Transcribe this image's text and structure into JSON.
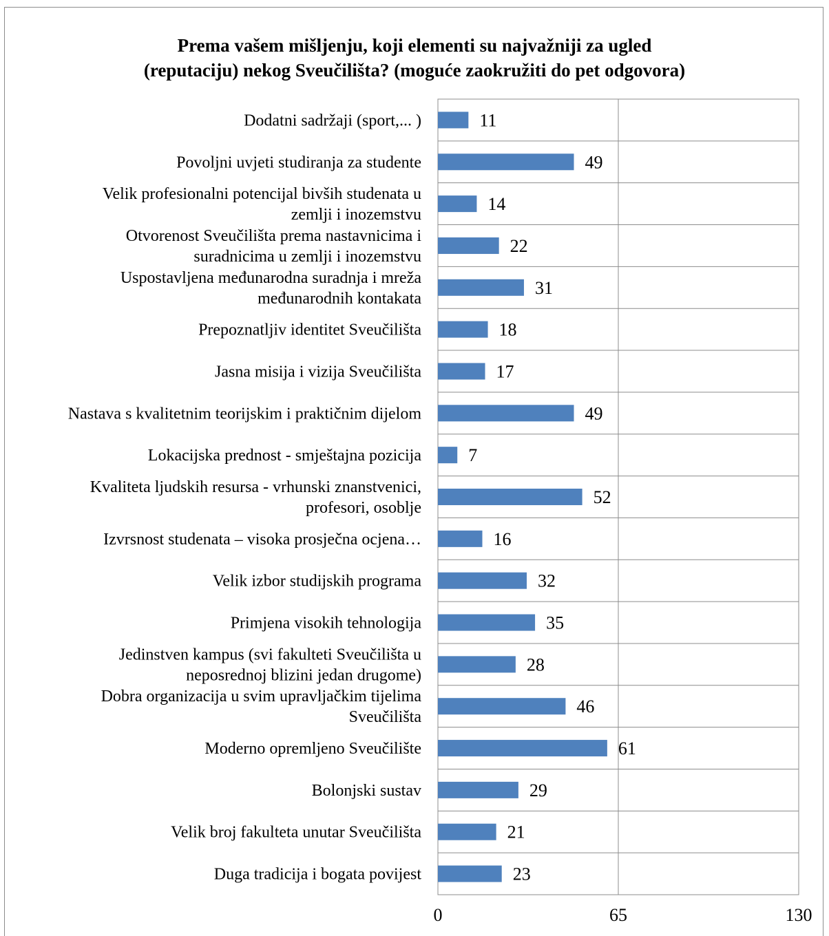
{
  "chart_data": {
    "type": "bar",
    "orientation": "horizontal",
    "title": [
      "Prema vašem mišljenju, koji elementi su najvažniji za ugled",
      "(reputaciju) nekog Sveučilišta? (moguće zaokružiti do pet odgovora)"
    ],
    "categories": [
      [
        "Dodatni sadržaji (sport,... )"
      ],
      [
        "Povoljni uvjeti studiranja za studente"
      ],
      [
        "Velik profesionalni potencijal bivših studenata u",
        "zemlji i inozemstvu"
      ],
      [
        "Otvorenost Sveučilišta prema nastavnicima i",
        "suradnicima u zemlji i inozemstvu"
      ],
      [
        "Uspostavljena međunarodna suradnja i mreža",
        "međunarodnih kontakata"
      ],
      [
        "Prepoznatljiv identitet Sveučilišta"
      ],
      [
        "Jasna misija i vizija Sveučilišta"
      ],
      [
        "Nastava s kvalitetnim teorijskim i praktičnim dijelom"
      ],
      [
        "Lokacijska prednost - smještajna pozicija"
      ],
      [
        "Kvaliteta ljudskih resursa  - vrhunski znanstvenici,",
        "profesori, osoblje"
      ],
      [
        "Izvrsnost studenata – visoka prosječna ocjena…"
      ],
      [
        "Velik izbor studijskih programa"
      ],
      [
        "Primjena visokih tehnologija"
      ],
      [
        "Jedinstven kampus (svi fakulteti Sveučilišta u",
        "neposrednoj blizini jedan drugome)"
      ],
      [
        "Dobra organizacija u svim upravljačkim tijelima",
        "Sveučilišta"
      ],
      [
        "Moderno opremljeno Sveučilište"
      ],
      [
        "Bolonjski sustav"
      ],
      [
        "Velik broj fakulteta unutar Sveučilišta"
      ],
      [
        "Duga tradicija i bogata povijest"
      ]
    ],
    "values": [
      11,
      49,
      14,
      22,
      31,
      18,
      17,
      49,
      7,
      52,
      16,
      32,
      35,
      28,
      46,
      61,
      29,
      21,
      23
    ],
    "xlim": [
      0,
      130
    ],
    "xticks": [
      "0",
      "65",
      "130"
    ],
    "grid": true,
    "bar_color": "#4f81bd",
    "grid_color": "#8c8c8c"
  }
}
